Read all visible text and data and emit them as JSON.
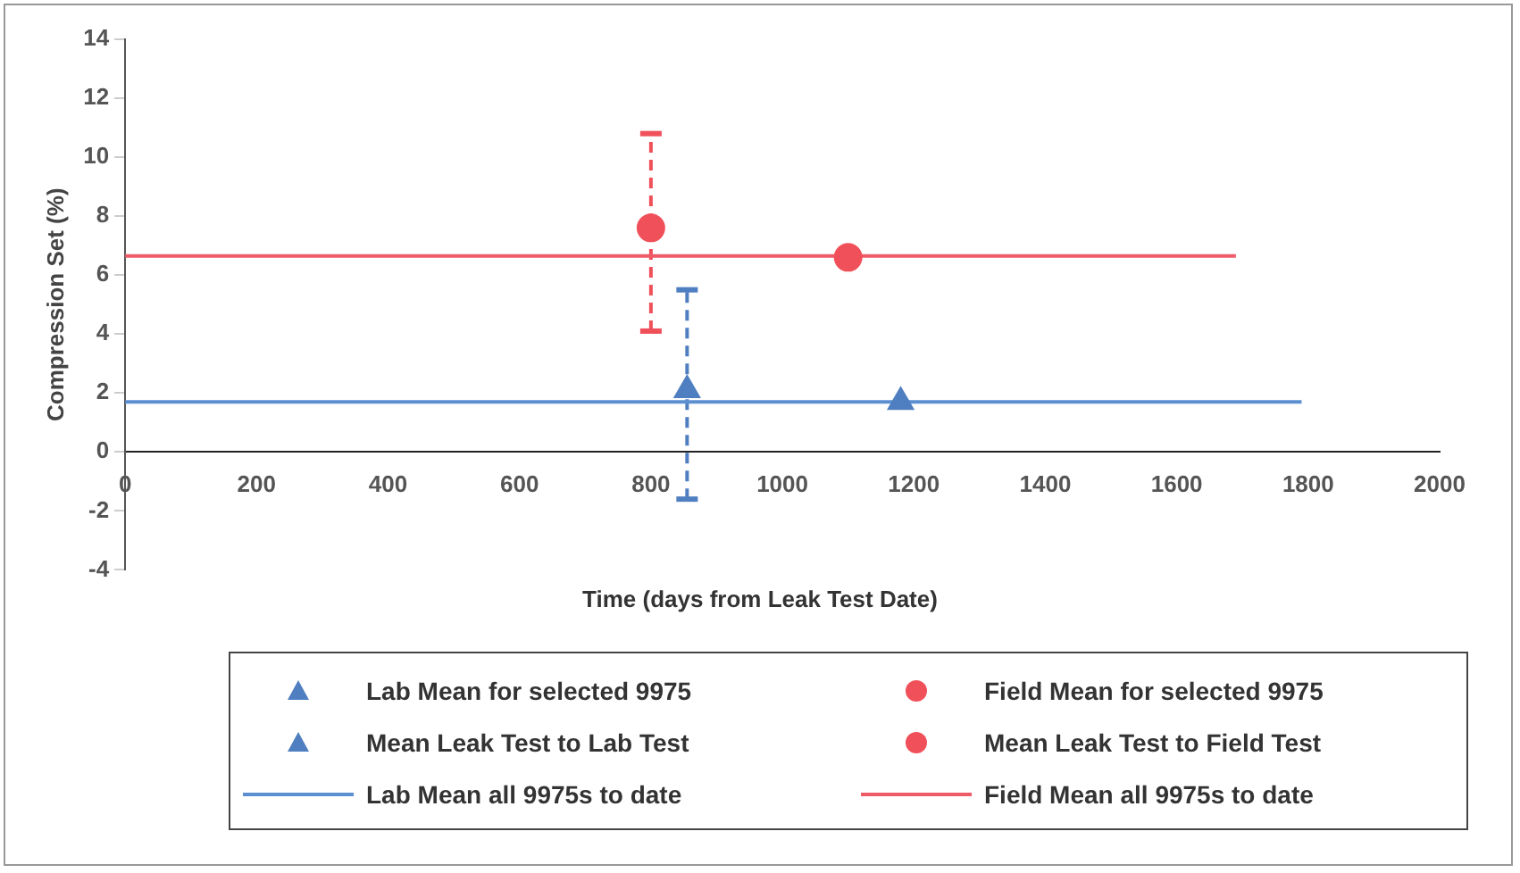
{
  "chart_data": {
    "type": "scatter",
    "xlabel": "Time (days from Leak Test Date)",
    "ylabel": "Compression Set (%)",
    "xlim": [
      0,
      2000
    ],
    "xticks": [
      0,
      200,
      400,
      600,
      800,
      1000,
      1200,
      1400,
      1600,
      1800,
      2000
    ],
    "ylim": [
      -4,
      14
    ],
    "yticks": [
      -4,
      -2,
      0,
      2,
      4,
      6,
      8,
      10,
      12,
      14
    ],
    "grid": false,
    "legend": "bottom",
    "series": [
      {
        "name": "Lab Mean for selected 9975",
        "color": "#4f7fc0",
        "marker": "triangle",
        "x": [
          855
        ],
        "values": [
          2.1
        ],
        "errors": [
          [
            -1.6,
            5.5
          ]
        ]
      },
      {
        "name": "Field Mean for selected 9975",
        "color": "#f0505a",
        "marker": "circle",
        "x": [
          800
        ],
        "values": [
          7.6
        ],
        "errors": [
          [
            4.1,
            10.8
          ]
        ]
      },
      {
        "name": "Mean Leak Test to Lab Test",
        "color": "#4f7fc0",
        "marker": "triangle",
        "x": [
          1180
        ],
        "values": [
          1.7
        ]
      },
      {
        "name": "Mean Leak Test to Field Test",
        "color": "#f0505a",
        "marker": "circle",
        "x": [
          1100
        ],
        "values": [
          6.6
        ]
      },
      {
        "name": "Lab Mean all 9975s to date",
        "type": "line",
        "color": "#5b8fd0",
        "marker": "none",
        "x": [
          0,
          1790
        ],
        "values": [
          1.7,
          1.7
        ]
      },
      {
        "name": "Field Mean all 9975s to date",
        "type": "line",
        "color": "#ee5a66",
        "marker": "none",
        "x": [
          0,
          1690
        ],
        "values": [
          6.65,
          6.65
        ]
      }
    ]
  }
}
